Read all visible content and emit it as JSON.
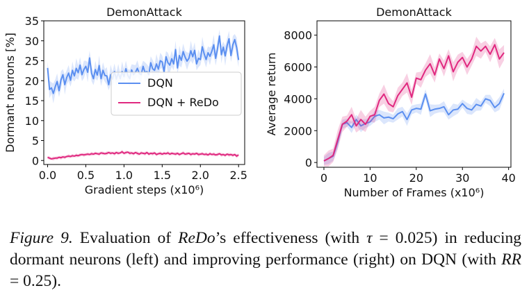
{
  "chart_data": [
    {
      "type": "line",
      "title": "DemonAttack",
      "xlabel": "Gradient steps (x10⁶)",
      "ylabel": "Dormant neurons [%]",
      "xlim": [
        -0.05,
        2.58
      ],
      "ylim": [
        -1,
        35
      ],
      "xticks": [
        0.0,
        0.5,
        1.0,
        1.5,
        2.0,
        2.5
      ],
      "xtick_labels": [
        "0.0",
        "0.5",
        "1.0",
        "1.5",
        "2.0",
        "2.5"
      ],
      "yticks": [
        0,
        5,
        10,
        15,
        20,
        25,
        30,
        35
      ],
      "ytick_labels": [
        "0",
        "5",
        "10",
        "15",
        "20",
        "25",
        "30",
        "35"
      ],
      "legend": "upper-right",
      "shaded_band": true,
      "grid": false,
      "series": [
        {
          "name": "DQN",
          "color": "#5b8ff0",
          "x": [
            0.0,
            0.025,
            0.05,
            0.075,
            0.1,
            0.125,
            0.15,
            0.175,
            0.2,
            0.225,
            0.25,
            0.275,
            0.3,
            0.325,
            0.35,
            0.375,
            0.4,
            0.425,
            0.45,
            0.475,
            0.5,
            0.525,
            0.55,
            0.575,
            0.6,
            0.625,
            0.65,
            0.675,
            0.7,
            0.725,
            0.75,
            0.775,
            0.8,
            0.825,
            0.85,
            0.875,
            0.9,
            0.925,
            0.95,
            0.975,
            1.0,
            1.025,
            1.05,
            1.075,
            1.1,
            1.125,
            1.15,
            1.175,
            1.2,
            1.225,
            1.25,
            1.275,
            1.3,
            1.325,
            1.35,
            1.375,
            1.4,
            1.425,
            1.45,
            1.475,
            1.5,
            1.525,
            1.55,
            1.575,
            1.6,
            1.625,
            1.65,
            1.675,
            1.7,
            1.725,
            1.75,
            1.775,
            1.8,
            1.825,
            1.85,
            1.875,
            1.9,
            1.925,
            1.95,
            1.975,
            2.0,
            2.025,
            2.05,
            2.075,
            2.1,
            2.125,
            2.15,
            2.175,
            2.2,
            2.225,
            2.25,
            2.275,
            2.3,
            2.325,
            2.35,
            2.375,
            2.4,
            2.425,
            2.45,
            2.475,
            2.5
          ],
          "values": [
            23.2,
            17.8,
            18.2,
            16.8,
            18.5,
            19.8,
            17.5,
            20.2,
            21.5,
            19.0,
            20.8,
            21.9,
            20.1,
            22.6,
            21.2,
            23.1,
            22.0,
            23.9,
            21.5,
            22.8,
            23.6,
            22.1,
            25.7,
            21.9,
            20.5,
            22.8,
            21.4,
            23.8,
            20.5,
            22.6,
            21.3,
            21.2,
            19.0,
            21.5,
            20.4,
            22.3,
            20.4,
            22.0,
            20.5,
            22.3,
            21.0,
            23.0,
            21.3,
            20.5,
            22.7,
            21.5,
            22.1,
            23.1,
            21.8,
            21.5,
            23.6,
            22.1,
            22.3,
            21.5,
            24.5,
            23.0,
            22.6,
            24.2,
            22.9,
            25.0,
            24.7,
            22.2,
            26.0,
            24.5,
            23.9,
            25.5,
            24.2,
            27.8,
            23.2,
            26.3,
            25.1,
            27.3,
            25.9,
            24.9,
            25.6,
            27.5,
            26.0,
            27.6,
            24.2,
            25.6,
            25.3,
            28.5,
            26.7,
            25.3,
            27.0,
            26.1,
            27.4,
            29.0,
            25.6,
            28.1,
            31.2,
            26.5,
            28.4,
            26.2,
            28.8,
            30.5,
            26.3,
            29.0,
            30.3,
            28.3,
            25.2
          ]
        },
        {
          "name": "DQN + ReDo",
          "color": "#e0287f",
          "x": [
            0.0,
            0.025,
            0.05,
            0.075,
            0.1,
            0.125,
            0.15,
            0.175,
            0.2,
            0.225,
            0.25,
            0.275,
            0.3,
            0.325,
            0.35,
            0.375,
            0.4,
            0.425,
            0.45,
            0.475,
            0.5,
            0.525,
            0.55,
            0.575,
            0.6,
            0.625,
            0.65,
            0.675,
            0.7,
            0.725,
            0.75,
            0.775,
            0.8,
            0.825,
            0.85,
            0.875,
            0.9,
            0.925,
            0.95,
            0.975,
            1.0,
            1.025,
            1.05,
            1.075,
            1.1,
            1.125,
            1.15,
            1.175,
            1.2,
            1.225,
            1.25,
            1.275,
            1.3,
            1.325,
            1.35,
            1.375,
            1.4,
            1.425,
            1.45,
            1.475,
            1.5,
            1.525,
            1.55,
            1.575,
            1.6,
            1.625,
            1.65,
            1.675,
            1.7,
            1.725,
            1.75,
            1.775,
            1.8,
            1.825,
            1.85,
            1.875,
            1.9,
            1.925,
            1.95,
            1.975,
            2.0,
            2.025,
            2.05,
            2.075,
            2.1,
            2.125,
            2.15,
            2.175,
            2.2,
            2.225,
            2.25,
            2.275,
            2.3,
            2.325,
            2.35,
            2.375,
            2.4,
            2.425,
            2.45,
            2.475,
            2.5
          ],
          "values": [
            0.8,
            0.6,
            0.4,
            0.5,
            0.6,
            0.6,
            0.8,
            0.7,
            0.9,
            0.8,
            1.0,
            1.1,
            1.0,
            1.2,
            1.1,
            1.3,
            1.2,
            1.4,
            1.5,
            1.4,
            1.5,
            1.6,
            1.5,
            1.7,
            1.6,
            1.8,
            1.7,
            1.6,
            1.9,
            1.8,
            1.7,
            1.8,
            2.0,
            1.8,
            1.9,
            1.7,
            2.0,
            1.8,
            1.9,
            2.2,
            1.8,
            2.0,
            2.1,
            1.8,
            1.9,
            1.7,
            2.0,
            1.8,
            1.6,
            1.9,
            1.8,
            1.7,
            2.0,
            1.6,
            1.8,
            1.7,
            1.9,
            1.5,
            1.7,
            1.8,
            1.6,
            1.8,
            1.7,
            1.9,
            1.6,
            1.8,
            1.7,
            1.6,
            1.8,
            1.5,
            1.7,
            1.9,
            1.6,
            1.7,
            1.8,
            1.5,
            1.7,
            1.6,
            1.8,
            1.5,
            1.6,
            1.7,
            1.5,
            1.6,
            1.4,
            1.7,
            1.5,
            1.6,
            1.4,
            1.5,
            1.7,
            1.4,
            1.5,
            1.3,
            1.6,
            1.4,
            1.5,
            1.3,
            1.5,
            1.1,
            1.4
          ]
        }
      ]
    },
    {
      "type": "line",
      "title": "DemonAttack",
      "xlabel": "Number of Frames (x10⁶)",
      "ylabel": "Average return",
      "xlim": [
        -1.5,
        40.5
      ],
      "ylim": [
        -300,
        8900
      ],
      "xticks": [
        0,
        10,
        20,
        30,
        40
      ],
      "xtick_labels": [
        "0",
        "10",
        "20",
        "30",
        "40"
      ],
      "yticks": [
        0,
        2000,
        4000,
        6000,
        8000
      ],
      "ytick_labels": [
        "0",
        "2000",
        "4000",
        "6000",
        "8000"
      ],
      "shaded_band": true,
      "grid": false,
      "series": [
        {
          "name": "DQN",
          "color": "#5b8ff0",
          "x": [
            0,
            1,
            2,
            3,
            4,
            5,
            6,
            7,
            8,
            9,
            10,
            11,
            12,
            13,
            14,
            15,
            16,
            17,
            18,
            19,
            20,
            21,
            22,
            23,
            24,
            25,
            26,
            27,
            28,
            29,
            30,
            31,
            32,
            33,
            34,
            35,
            36,
            37,
            38,
            39
          ],
          "values": [
            100,
            250,
            400,
            1300,
            2400,
            2500,
            2200,
            2700,
            2300,
            2450,
            2550,
            2900,
            3000,
            2800,
            2850,
            2750,
            3050,
            3200,
            2700,
            3300,
            3400,
            3350,
            4300,
            3250,
            3350,
            3400,
            3500,
            3000,
            3300,
            3350,
            3700,
            3400,
            3300,
            3650,
            3550,
            4000,
            3900,
            3450,
            3700,
            4350
          ]
        },
        {
          "name": "DQN + ReDo",
          "color": "#e0287f",
          "x": [
            0,
            1,
            2,
            3,
            4,
            5,
            6,
            7,
            8,
            9,
            10,
            11,
            12,
            13,
            14,
            15,
            16,
            17,
            18,
            19,
            20,
            21,
            22,
            23,
            24,
            25,
            26,
            27,
            28,
            29,
            30,
            31,
            32,
            33,
            34,
            35,
            36,
            37,
            38,
            39
          ],
          "values": [
            100,
            250,
            450,
            1450,
            2400,
            2600,
            3000,
            2300,
            2700,
            2400,
            2900,
            3000,
            3900,
            4300,
            3700,
            3500,
            4200,
            4600,
            5000,
            4100,
            5300,
            5200,
            5800,
            6200,
            5500,
            6500,
            5900,
            6700,
            5700,
            6300,
            6600,
            6000,
            6500,
            7300,
            7000,
            7300,
            6800,
            7400,
            6500,
            6900
          ]
        }
      ]
    }
  ],
  "caption": {
    "figure_label": "Figure 9.",
    "text_1": " Evaluation of ",
    "method": "ReDo",
    "text_2": "’s effectiveness (with ",
    "tau_symbol": "τ",
    "tau_value": " = 0.025",
    "text_3": ") in reducing dormant neurons (left) and improving performance (right) on DQN (with ",
    "rr_symbol": "RR",
    "rr_value": " = 0.25",
    "text_4": ")."
  }
}
